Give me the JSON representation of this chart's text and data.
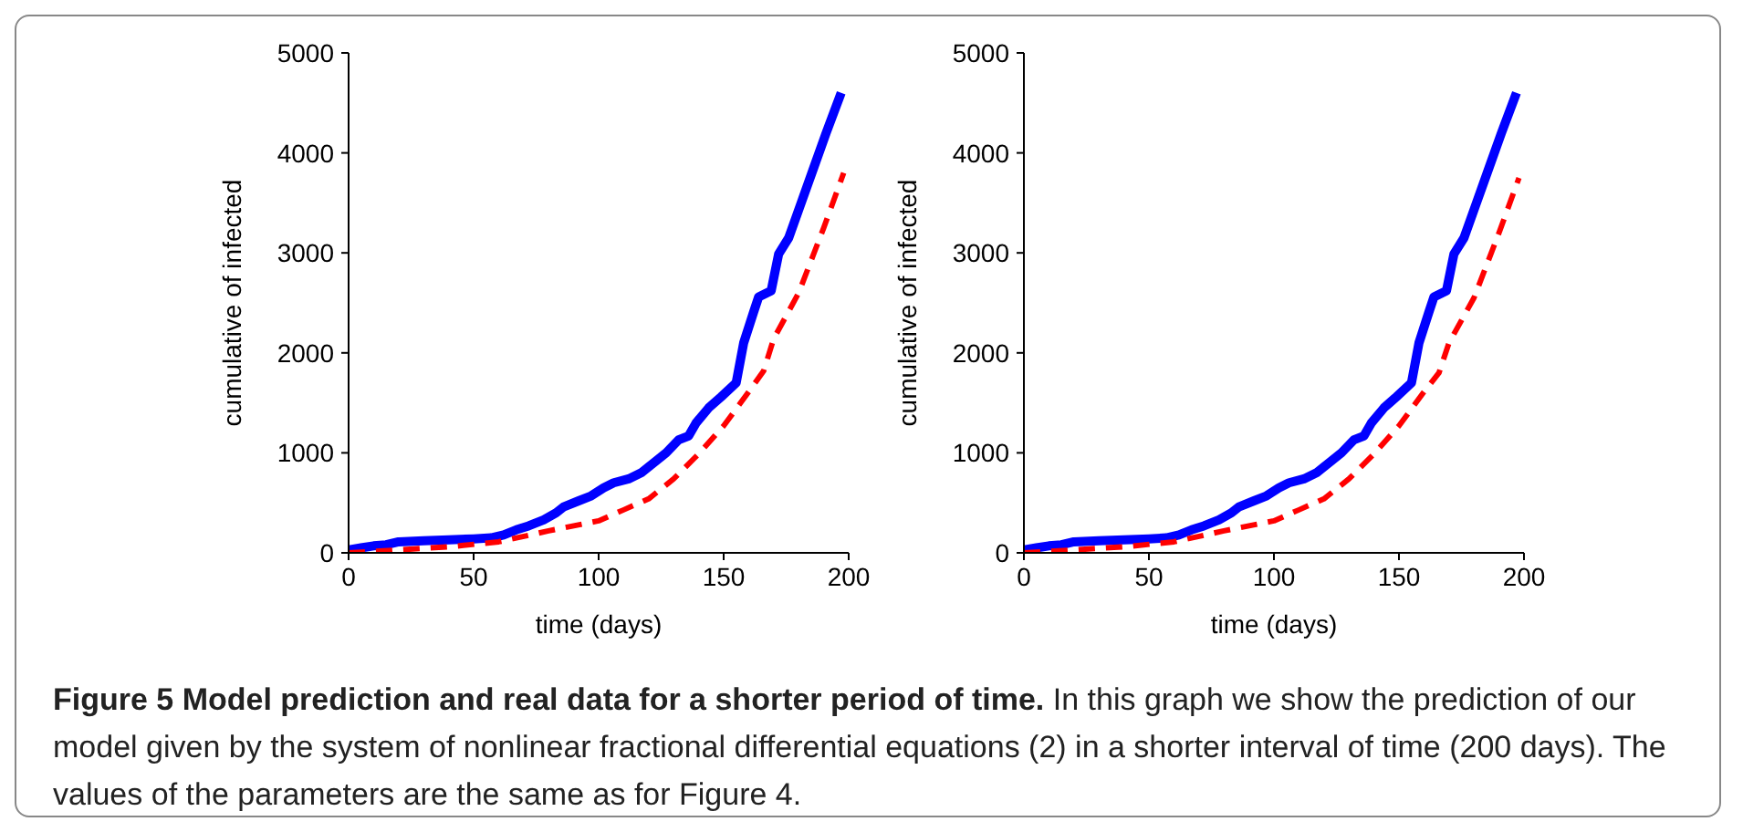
{
  "chart_data": [
    {
      "type": "line",
      "xlabel": "time (days)",
      "ylabel": "cumulative of infected",
      "xlim": [
        0,
        200
      ],
      "ylim": [
        0,
        5000
      ],
      "xticks": [
        0,
        50,
        100,
        150,
        200
      ],
      "yticks": [
        0,
        1000,
        2000,
        3000,
        4000,
        5000
      ],
      "grid": false,
      "marker": "none",
      "series": [
        {
          "color": "#0000ff",
          "line_style": "solid",
          "x": [
            0,
            5,
            10,
            15,
            20,
            30,
            40,
            50,
            57,
            62,
            67,
            72,
            78,
            83,
            86,
            92,
            97,
            102,
            106,
            112,
            117,
            122,
            127,
            132,
            136,
            139,
            144,
            149,
            155,
            158,
            162,
            164,
            169,
            172,
            176,
            181,
            186,
            191,
            197
          ],
          "values": [
            30,
            50,
            70,
            80,
            110,
            120,
            130,
            140,
            150,
            180,
            230,
            270,
            330,
            400,
            460,
            520,
            570,
            650,
            700,
            740,
            800,
            900,
            1000,
            1130,
            1170,
            1300,
            1450,
            1560,
            1700,
            2100,
            2410,
            2560,
            2620,
            2990,
            3150,
            3500,
            3850,
            4200,
            4600
          ]
        },
        {
          "color": "#ff0000",
          "line_style": "dashed",
          "x": [
            0,
            20,
            40,
            60,
            80,
            100,
            110,
            120,
            130,
            140,
            150,
            160,
            166,
            170,
            180,
            190,
            198
          ],
          "values": [
            0,
            30,
            60,
            110,
            220,
            320,
            430,
            540,
            740,
            990,
            1270,
            1610,
            1820,
            2140,
            2600,
            3250,
            3800
          ]
        }
      ],
      "annotations": [
        "Figure 5  Model prediction and real data for a shorter period of time.",
        "In this graph we show the prediction of our model given by the system of nonlinear fractional differential equations (2) in a shorter interval of time (200 days). The values of the parameters are the same as for Figure 4."
      ]
    },
    {
      "type": "line",
      "xlabel": "time (days)",
      "ylabel": "cumulative of infected",
      "xlim": [
        0,
        200
      ],
      "ylim": [
        0,
        5000
      ],
      "xticks": [
        0,
        50,
        100,
        150,
        200
      ],
      "yticks": [
        0,
        1000,
        2000,
        3000,
        4000,
        5000
      ],
      "grid": false,
      "marker": "none",
      "series": [
        {
          "color": "#0000ff",
          "line_style": "solid",
          "x": [
            0,
            5,
            10,
            15,
            20,
            30,
            40,
            50,
            57,
            62,
            67,
            72,
            78,
            83,
            86,
            92,
            97,
            102,
            106,
            112,
            117,
            122,
            127,
            132,
            136,
            139,
            144,
            149,
            155,
            158,
            162,
            164,
            169,
            172,
            176,
            181,
            186,
            191,
            197
          ],
          "values": [
            30,
            50,
            70,
            80,
            110,
            120,
            130,
            140,
            150,
            180,
            230,
            270,
            330,
            400,
            460,
            520,
            570,
            650,
            700,
            740,
            800,
            900,
            1000,
            1130,
            1170,
            1300,
            1450,
            1560,
            1700,
            2100,
            2410,
            2560,
            2620,
            2990,
            3150,
            3500,
            3850,
            4200,
            4600
          ]
        },
        {
          "color": "#ff0000",
          "line_style": "dashed",
          "x": [
            0,
            20,
            40,
            60,
            80,
            100,
            110,
            120,
            130,
            140,
            150,
            160,
            166,
            170,
            180,
            190,
            198
          ],
          "values": [
            0,
            30,
            60,
            110,
            220,
            320,
            430,
            540,
            740,
            990,
            1270,
            1610,
            1800,
            2100,
            2550,
            3200,
            3750
          ]
        }
      ]
    }
  ]
}
